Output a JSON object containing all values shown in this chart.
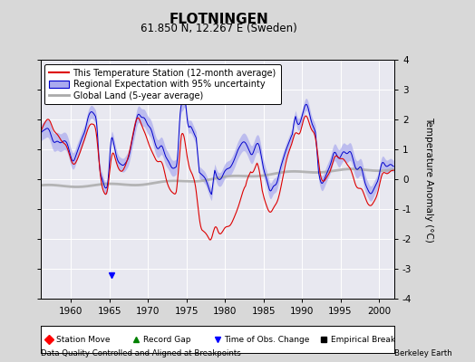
{
  "title": "FLOTNINGEN",
  "subtitle": "61.850 N, 12.267 E (Sweden)",
  "xlabel_years": [
    1960,
    1965,
    1970,
    1975,
    1980,
    1985,
    1990,
    1995,
    2000
  ],
  "ylabel": "Temperature Anomaly (°C)",
  "ylim": [
    -4,
    4
  ],
  "xlim": [
    1956,
    2002
  ],
  "yticks": [
    -4,
    -3,
    -2,
    -1,
    0,
    1,
    2,
    3,
    4
  ],
  "footer_left": "Data Quality Controlled and Aligned at Breakpoints",
  "footer_right": "Berkeley Earth",
  "legend_entries": [
    "This Temperature Station (12-month average)",
    "Regional Expectation with 95% uncertainty",
    "Global Land (5-year average)"
  ],
  "bg_color": "#d8d8d8",
  "plot_bg_color": "#e8e8f0",
  "station_color": "#dd0000",
  "regional_color": "#0000cc",
  "regional_fill_color": "#aaaaee",
  "global_color": "#aaaaaa",
  "grid_color": "#ffffff"
}
